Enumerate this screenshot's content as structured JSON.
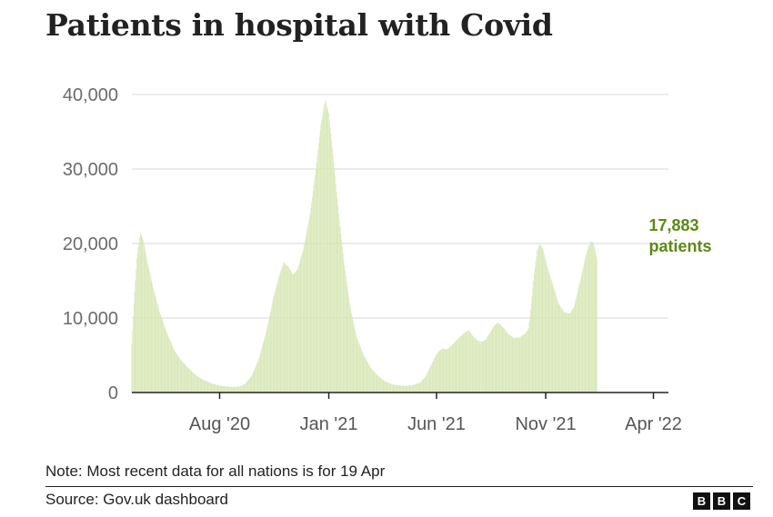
{
  "title": "Patients in hospital with Covid",
  "note": "Note: Most recent data for all nations is for 19 Apr",
  "source": "Source: Gov.uk dashboard",
  "logo_letters": [
    "B",
    "B",
    "C"
  ],
  "colors": {
    "bars": "#d6e6b3",
    "annotation": "#5a8a0f",
    "grid": "#d9d9d9",
    "axis": "#222222",
    "tick_text": "#6b6b6b"
  },
  "chart_data": {
    "type": "bar",
    "title": "Patients in hospital with Covid",
    "xlabel": "",
    "ylabel": "",
    "ylim": [
      0,
      40000
    ],
    "yticks": [
      0,
      10000,
      20000,
      30000,
      40000
    ],
    "ytick_labels": [
      "0",
      "10,000",
      "20,000",
      "30,000",
      "40,000"
    ],
    "xticks": [
      {
        "label": "Aug '20",
        "day": 123
      },
      {
        "label": "Jan '21",
        "day": 276
      },
      {
        "label": "Jun '21",
        "day": 427
      },
      {
        "label": "Nov '21",
        "day": 580
      },
      {
        "label": "Apr '22",
        "day": 731
      }
    ],
    "x_range_days": [
      0,
      752
    ],
    "series_note": "daily patients; x = days since 1 Apr 2020",
    "keypoints": [
      [
        0,
        6500
      ],
      [
        3,
        12000
      ],
      [
        7,
        18000
      ],
      [
        12,
        21500
      ],
      [
        16,
        20500
      ],
      [
        22,
        17500
      ],
      [
        30,
        14000
      ],
      [
        40,
        10500
      ],
      [
        50,
        7800
      ],
      [
        60,
        5600
      ],
      [
        70,
        4200
      ],
      [
        80,
        3200
      ],
      [
        90,
        2300
      ],
      [
        100,
        1700
      ],
      [
        110,
        1300
      ],
      [
        120,
        1000
      ],
      [
        130,
        850
      ],
      [
        140,
        750
      ],
      [
        150,
        800
      ],
      [
        158,
        1100
      ],
      [
        168,
        2200
      ],
      [
        178,
        4500
      ],
      [
        188,
        8000
      ],
      [
        198,
        12500
      ],
      [
        206,
        15500
      ],
      [
        213,
        17500
      ],
      [
        220,
        16800
      ],
      [
        226,
        15800
      ],
      [
        232,
        16500
      ],
      [
        240,
        19000
      ],
      [
        250,
        24000
      ],
      [
        258,
        30000
      ],
      [
        265,
        36000
      ],
      [
        271,
        39200
      ],
      [
        276,
        37500
      ],
      [
        283,
        31000
      ],
      [
        290,
        24000
      ],
      [
        298,
        17000
      ],
      [
        306,
        11500
      ],
      [
        315,
        7500
      ],
      [
        325,
        5000
      ],
      [
        335,
        3300
      ],
      [
        345,
        2200
      ],
      [
        355,
        1500
      ],
      [
        365,
        1100
      ],
      [
        375,
        950
      ],
      [
        385,
        900
      ],
      [
        395,
        1000
      ],
      [
        405,
        1400
      ],
      [
        412,
        2200
      ],
      [
        420,
        3800
      ],
      [
        428,
        5300
      ],
      [
        435,
        5900
      ],
      [
        442,
        5800
      ],
      [
        450,
        6500
      ],
      [
        458,
        7300
      ],
      [
        466,
        8000
      ],
      [
        472,
        8400
      ],
      [
        478,
        7600
      ],
      [
        484,
        7000
      ],
      [
        490,
        6800
      ],
      [
        496,
        7100
      ],
      [
        502,
        8000
      ],
      [
        508,
        9000
      ],
      [
        513,
        9400
      ],
      [
        520,
        8800
      ],
      [
        528,
        7800
      ],
      [
        536,
        7300
      ],
      [
        544,
        7400
      ],
      [
        551,
        7900
      ],
      [
        556,
        8600
      ],
      [
        560,
        12000
      ],
      [
        564,
        16000
      ],
      [
        568,
        19000
      ],
      [
        572,
        20000
      ],
      [
        576,
        19300
      ],
      [
        582,
        17000
      ],
      [
        590,
        14500
      ],
      [
        598,
        12000
      ],
      [
        606,
        10800
      ],
      [
        614,
        10600
      ],
      [
        620,
        11500
      ],
      [
        626,
        14000
      ],
      [
        632,
        16500
      ],
      [
        638,
        19000
      ],
      [
        643,
        20300
      ],
      [
        647,
        20100
      ],
      [
        652,
        17883
      ]
    ],
    "annotation": {
      "value": "17,883",
      "label": "patients"
    }
  }
}
